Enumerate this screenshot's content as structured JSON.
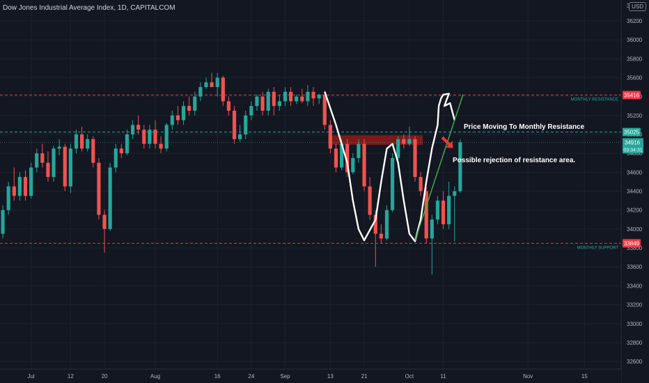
{
  "header": {
    "title": "Dow Jones Industrial Average Index, 1D, CAPITALCOM",
    "currency": "USD",
    "currency_top": "36"
  },
  "annotations": {
    "resistance_note": "Price Moving To Monthly Resistance",
    "rejection_note": "Possible rejection of resistance area."
  },
  "colors": {
    "background": "#131722",
    "up": "#26a69a",
    "down": "#ef5350",
    "resistance_line": "#ef5350",
    "trendline": "#4caf50",
    "zone": "#8b1a1a",
    "label_red": "#f23645",
    "label_teal": "#26a69a"
  },
  "chart_data": {
    "type": "candlestick",
    "title": "Dow Jones Industrial Average Index, 1D, CAPITALCOM",
    "ylim": [
      32520,
      36420
    ],
    "y_ticks": [
      32600,
      32800,
      33000,
      33200,
      33400,
      33600,
      33800,
      34000,
      34200,
      34400,
      34600,
      34800,
      35000,
      35200,
      35400,
      35600,
      35800,
      36000,
      36200
    ],
    "x_ticks": [
      {
        "label": "Jul",
        "index": 5
      },
      {
        "label": "12",
        "index": 12
      },
      {
        "label": "20",
        "index": 18
      },
      {
        "label": "Aug",
        "index": 27
      },
      {
        "label": "16",
        "index": 38
      },
      {
        "label": "24",
        "index": 44
      },
      {
        "label": "Sep",
        "index": 50
      },
      {
        "label": "13",
        "index": 58
      },
      {
        "label": "21",
        "index": 64
      },
      {
        "label": "Oct",
        "index": 72
      },
      {
        "label": "11",
        "index": 78
      },
      {
        "label": "Nov",
        "index": 93
      },
      {
        "label": "15",
        "index": 103
      }
    ],
    "x_slots": 110,
    "levels": [
      {
        "name": "MONTHLY RESISTANCE",
        "value": 35416,
        "label": "35416",
        "color": "#f23645"
      },
      {
        "name": "",
        "value": 35025,
        "label": "35025",
        "color": "#26a69a"
      },
      {
        "name": "MONTHLY SUPPORT",
        "value": 33849,
        "label": "33849",
        "color": "#f23645"
      }
    ],
    "current_price": {
      "value": 34916,
      "label": "34916",
      "countdown": "03:34:31"
    },
    "resistance_zone": [
      34890,
      34990
    ],
    "candles": [
      {
        "o": 33950,
        "h": 34250,
        "l": 33900,
        "c": 34200
      },
      {
        "o": 34200,
        "h": 34500,
        "l": 34150,
        "c": 34450
      },
      {
        "o": 34450,
        "h": 34650,
        "l": 34300,
        "c": 34350
      },
      {
        "o": 34350,
        "h": 34600,
        "l": 34300,
        "c": 34550
      },
      {
        "o": 34550,
        "h": 34620,
        "l": 34300,
        "c": 34350
      },
      {
        "o": 34350,
        "h": 34700,
        "l": 34320,
        "c": 34650
      },
      {
        "o": 34650,
        "h": 34850,
        "l": 34600,
        "c": 34800
      },
      {
        "o": 34800,
        "h": 34900,
        "l": 34650,
        "c": 34700
      },
      {
        "o": 34700,
        "h": 34820,
        "l": 34500,
        "c": 34550
      },
      {
        "o": 34550,
        "h": 34880,
        "l": 34500,
        "c": 34850
      },
      {
        "o": 34850,
        "h": 34950,
        "l": 34780,
        "c": 34870
      },
      {
        "o": 34870,
        "h": 34900,
        "l": 34400,
        "c": 34450
      },
      {
        "o": 34450,
        "h": 34900,
        "l": 34380,
        "c": 34850
      },
      {
        "o": 34850,
        "h": 35050,
        "l": 34800,
        "c": 35000
      },
      {
        "o": 35000,
        "h": 35080,
        "l": 34820,
        "c": 34850
      },
      {
        "o": 34850,
        "h": 35000,
        "l": 34820,
        "c": 34950
      },
      {
        "o": 34950,
        "h": 34980,
        "l": 34650,
        "c": 34700
      },
      {
        "o": 34700,
        "h": 34750,
        "l": 34100,
        "c": 34150
      },
      {
        "o": 34150,
        "h": 34200,
        "l": 33750,
        "c": 34000
      },
      {
        "o": 34000,
        "h": 34700,
        "l": 33980,
        "c": 34650
      },
      {
        "o": 34650,
        "h": 34900,
        "l": 34600,
        "c": 34850
      },
      {
        "o": 34850,
        "h": 34900,
        "l": 34750,
        "c": 34800
      },
      {
        "o": 34800,
        "h": 35050,
        "l": 34780,
        "c": 35000
      },
      {
        "o": 35000,
        "h": 35150,
        "l": 34950,
        "c": 35100
      },
      {
        "o": 35100,
        "h": 35200,
        "l": 35000,
        "c": 35050
      },
      {
        "o": 35050,
        "h": 35100,
        "l": 34850,
        "c": 34900
      },
      {
        "o": 34900,
        "h": 35100,
        "l": 34850,
        "c": 35050
      },
      {
        "o": 35050,
        "h": 35150,
        "l": 34850,
        "c": 34900
      },
      {
        "o": 34900,
        "h": 34980,
        "l": 34800,
        "c": 34850
      },
      {
        "o": 34850,
        "h": 35120,
        "l": 34820,
        "c": 35100
      },
      {
        "o": 35100,
        "h": 35250,
        "l": 35050,
        "c": 35200
      },
      {
        "o": 35200,
        "h": 35300,
        "l": 35100,
        "c": 35150
      },
      {
        "o": 35150,
        "h": 35350,
        "l": 35100,
        "c": 35300
      },
      {
        "o": 35300,
        "h": 35400,
        "l": 35200,
        "c": 35250
      },
      {
        "o": 35250,
        "h": 35450,
        "l": 35200,
        "c": 35400
      },
      {
        "o": 35400,
        "h": 35550,
        "l": 35350,
        "c": 35500
      },
      {
        "o": 35500,
        "h": 35600,
        "l": 35480,
        "c": 35550
      },
      {
        "o": 35550,
        "h": 35650,
        "l": 35500,
        "c": 35500
      },
      {
        "o": 35500,
        "h": 35650,
        "l": 35400,
        "c": 35600
      },
      {
        "o": 35600,
        "h": 35620,
        "l": 35300,
        "c": 35350
      },
      {
        "o": 35350,
        "h": 35400,
        "l": 35200,
        "c": 35250
      },
      {
        "o": 35250,
        "h": 35300,
        "l": 34900,
        "c": 34950
      },
      {
        "o": 34950,
        "h": 35100,
        "l": 34920,
        "c": 35000
      },
      {
        "o": 35000,
        "h": 35250,
        "l": 34950,
        "c": 35200
      },
      {
        "o": 35200,
        "h": 35350,
        "l": 35150,
        "c": 35300
      },
      {
        "o": 35300,
        "h": 35420,
        "l": 35250,
        "c": 35400
      },
      {
        "o": 35400,
        "h": 35450,
        "l": 35200,
        "c": 35250
      },
      {
        "o": 35250,
        "h": 35480,
        "l": 35200,
        "c": 35450
      },
      {
        "o": 35450,
        "h": 35500,
        "l": 35200,
        "c": 35300
      },
      {
        "o": 35300,
        "h": 35420,
        "l": 35250,
        "c": 35350
      },
      {
        "o": 35350,
        "h": 35500,
        "l": 35300,
        "c": 35450
      },
      {
        "o": 35450,
        "h": 35500,
        "l": 35300,
        "c": 35350
      },
      {
        "o": 35350,
        "h": 35420,
        "l": 35320,
        "c": 35400
      },
      {
        "o": 35400,
        "h": 35480,
        "l": 35330,
        "c": 35350
      },
      {
        "o": 35350,
        "h": 35520,
        "l": 35300,
        "c": 35450
      },
      {
        "o": 35450,
        "h": 35500,
        "l": 35300,
        "c": 35380
      },
      {
        "o": 35380,
        "h": 35430,
        "l": 35320,
        "c": 35420
      },
      {
        "o": 35420,
        "h": 35460,
        "l": 35050,
        "c": 35100
      },
      {
        "o": 35100,
        "h": 35150,
        "l": 34800,
        "c": 34850
      },
      {
        "o": 34850,
        "h": 34900,
        "l": 34600,
        "c": 34650
      },
      {
        "o": 34650,
        "h": 34950,
        "l": 34620,
        "c": 34900
      },
      {
        "o": 34900,
        "h": 34950,
        "l": 34550,
        "c": 34600
      },
      {
        "o": 34600,
        "h": 34800,
        "l": 34580,
        "c": 34750
      },
      {
        "o": 34750,
        "h": 34950,
        "l": 34700,
        "c": 34900
      },
      {
        "o": 34900,
        "h": 34950,
        "l": 34400,
        "c": 34450
      },
      {
        "o": 34450,
        "h": 34550,
        "l": 34100,
        "c": 34150
      },
      {
        "o": 34150,
        "h": 34200,
        "l": 33600,
        "c": 33950
      },
      {
        "o": 33950,
        "h": 34050,
        "l": 33850,
        "c": 33900
      },
      {
        "o": 33900,
        "h": 34250,
        "l": 33880,
        "c": 34200
      },
      {
        "o": 34200,
        "h": 34800,
        "l": 34180,
        "c": 34750
      },
      {
        "o": 34750,
        "h": 34980,
        "l": 34700,
        "c": 34950
      },
      {
        "o": 34950,
        "h": 35000,
        "l": 34850,
        "c": 34900
      },
      {
        "o": 34900,
        "h": 35080,
        "l": 34880,
        "c": 34950
      },
      {
        "o": 34950,
        "h": 34980,
        "l": 34500,
        "c": 34550
      },
      {
        "o": 34550,
        "h": 34600,
        "l": 34350,
        "c": 34400
      },
      {
        "o": 34400,
        "h": 34450,
        "l": 33850,
        "c": 33900
      },
      {
        "o": 33900,
        "h": 34150,
        "l": 33520,
        "c": 34100
      },
      {
        "o": 34100,
        "h": 34350,
        "l": 34050,
        "c": 34300
      },
      {
        "o": 34300,
        "h": 34400,
        "l": 34000,
        "c": 34050
      },
      {
        "o": 34050,
        "h": 34500,
        "l": 34000,
        "c": 34350
      },
      {
        "o": 34350,
        "h": 34450,
        "l": 33870,
        "c": 34400
      },
      {
        "o": 34400,
        "h": 34950,
        "l": 34380,
        "c": 34916
      }
    ]
  }
}
